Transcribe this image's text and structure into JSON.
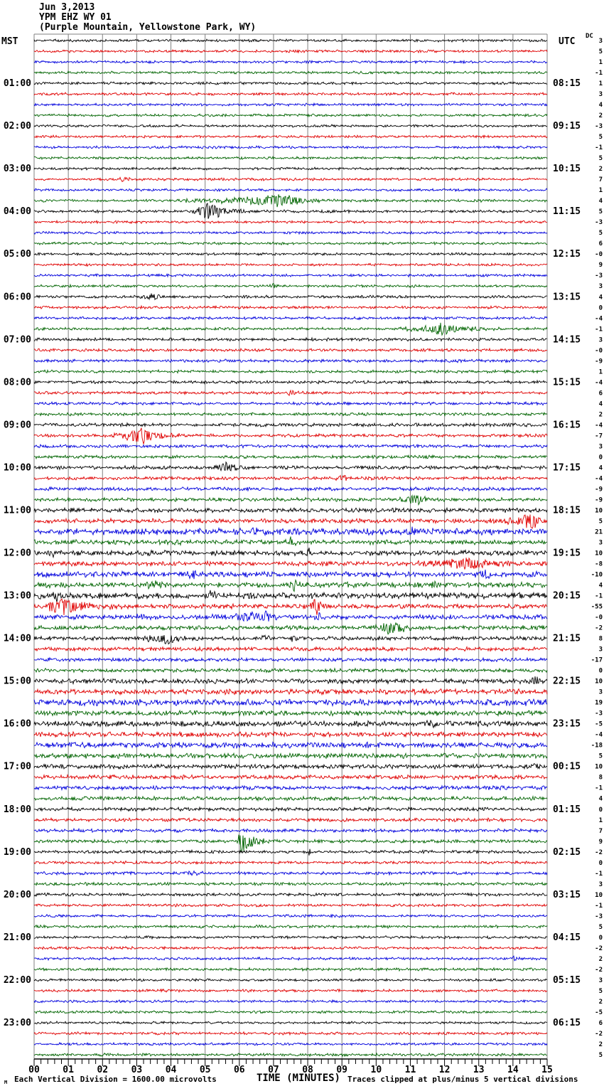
{
  "header": {
    "date": "Jun 3,2013",
    "station": "YPM EHZ WY 01",
    "location": "(Purple Mountain, Yellowstone Park, WY)"
  },
  "axes": {
    "left_timezone": "MST",
    "right_timezone": "UTC",
    "dc_header": "DC",
    "x_title": "TIME (MINUTES)",
    "footer_left": "Each Vertical Division = 1600.00 microvolts",
    "footer_right": "Traces clipped at plus/minus 5 vertical divisions",
    "logo_mark": "M"
  },
  "colors": {
    "trace_cycle": [
      "#000000",
      "#e00000",
      "#0000dd",
      "#006400"
    ],
    "grid": "#808080",
    "text": "#000000"
  },
  "chart_data": {
    "type": "line",
    "subtype": "seismogram-helicorder",
    "title": "YPM EHZ WY 01",
    "subtitle": "(Purple Mountain, Yellowstone Park, WY)",
    "date": "Jun 3,2013",
    "x_range_minutes": [
      0,
      15
    ],
    "x_tick_labels": [
      "00",
      "01",
      "02",
      "03",
      "04",
      "05",
      "06",
      "07",
      "08",
      "09",
      "10",
      "11",
      "12",
      "13",
      "14",
      "15"
    ],
    "trace_count": 96,
    "trace_duration_minutes": 15,
    "traces_per_hour": 4,
    "mst_start": "00:00",
    "utc_offset_hours": 7,
    "mst_hour_labels": [
      "01:00",
      "02:00",
      "03:00",
      "04:00",
      "05:00",
      "06:00",
      "07:00",
      "08:00",
      "09:00",
      "10:00",
      "11:00",
      "12:00",
      "13:00",
      "14:00",
      "15:00",
      "16:00",
      "17:00",
      "18:00",
      "19:00",
      "20:00",
      "21:00",
      "22:00",
      "23:00"
    ],
    "utc_hour_labels": [
      "08:15",
      "09:15",
      "10:15",
      "11:15",
      "12:15",
      "13:15",
      "14:15",
      "15:15",
      "16:15",
      "17:15",
      "18:15",
      "19:15",
      "20:15",
      "21:15",
      "22:15",
      "23:15",
      "00:15",
      "01:15",
      "02:15",
      "03:15",
      "04:15",
      "05:15",
      "06:15"
    ],
    "hour_label_rows": [
      4,
      8,
      12,
      16,
      20,
      24,
      28,
      32,
      36,
      40,
      44,
      48,
      52,
      56,
      60,
      64,
      68,
      72,
      76,
      80,
      84,
      88,
      92
    ],
    "dc_offsets": [
      "3",
      "5",
      "1",
      "-1",
      "1",
      "3",
      "4",
      "2",
      "-3",
      "5",
      "-1",
      "5",
      "2",
      "7",
      "1",
      "4",
      "5",
      "-3",
      "5",
      "6",
      "-0",
      "9",
      "-3",
      "3",
      "4",
      "0",
      "-4",
      "-1",
      "3",
      "-0",
      "-9",
      "1",
      "-4",
      "6",
      "4",
      "2",
      "-4",
      "-7",
      "3",
      "0",
      "4",
      "-4",
      "-9",
      "-9",
      "10",
      "5",
      "21",
      "3",
      "10",
      "-8",
      "-10",
      "4",
      "-1",
      "-55",
      "-0",
      "-2",
      "8",
      "3",
      "-17",
      "0",
      "10",
      "3",
      "19",
      "-3",
      "-5",
      "-4",
      "-18",
      "5",
      "10",
      "8",
      "-1",
      "4",
      "0",
      "1",
      "7",
      "9",
      "-2",
      "0",
      "-1",
      "3",
      "10",
      "-1",
      "-3",
      "5",
      "0",
      "-2",
      "2",
      "-2",
      "3",
      "5",
      "2",
      "-5",
      "6",
      "-2",
      "2",
      "5"
    ],
    "noise_level": [
      1.2,
      1.2,
      1.2,
      1.2,
      1.2,
      1.2,
      1.2,
      1.2,
      1.2,
      1.2,
      1.2,
      1.2,
      1.2,
      1.2,
      1.2,
      1.3,
      1.3,
      1.2,
      1.2,
      1.2,
      1.2,
      1.2,
      1.2,
      1.2,
      1.3,
      1.3,
      1.3,
      1.3,
      1.4,
      1.4,
      1.4,
      1.4,
      1.4,
      1.4,
      1.4,
      1.4,
      1.6,
      1.5,
      1.5,
      1.5,
      1.7,
      1.6,
      1.7,
      1.7,
      2.1,
      2.2,
      3.0,
      2.3,
      2.5,
      2.2,
      2.6,
      2.5,
      2.9,
      2.2,
      2.3,
      2.1,
      1.9,
      1.9,
      1.7,
      1.7,
      2.3,
      2.5,
      3.0,
      2.4,
      2.6,
      2.3,
      2.7,
      2.3,
      2.1,
      2.1,
      1.9,
      1.9,
      1.7,
      1.6,
      1.6,
      1.6,
      1.5,
      1.4,
      1.5,
      1.4,
      1.4,
      1.3,
      1.3,
      1.3,
      1.3,
      1.3,
      1.3,
      1.3,
      1.2,
      1.3,
      1.2,
      1.2,
      1.2,
      1.3,
      1.2,
      1.3
    ],
    "events": [
      [
        13,
        2.4,
        2.6,
        3.1,
        3
      ],
      [
        15,
        4.0,
        7.3,
        9.0,
        9
      ],
      [
        16,
        4.5,
        5.1,
        6.6,
        13
      ],
      [
        23,
        6.8,
        7.0,
        7.3,
        4
      ],
      [
        24,
        3.0,
        3.4,
        4.2,
        6
      ],
      [
        27,
        10.3,
        11.9,
        13.8,
        8
      ],
      [
        33,
        7.3,
        7.5,
        7.8,
        4
      ],
      [
        37,
        2.0,
        3.2,
        4.4,
        11
      ],
      [
        40,
        5.0,
        5.6,
        6.6,
        8
      ],
      [
        41,
        8.7,
        9.0,
        9.4,
        5
      ],
      [
        43,
        10.4,
        11.2,
        12.0,
        8
      ],
      [
        45,
        13.4,
        14.6,
        15.0,
        12
      ],
      [
        46,
        6.0,
        6.5,
        7.2,
        5
      ],
      [
        46,
        10.5,
        11.0,
        12.0,
        5
      ],
      [
        47,
        7.3,
        7.5,
        8.0,
        5
      ],
      [
        48,
        0.2,
        0.5,
        1.3,
        5
      ],
      [
        48,
        7.8,
        8.0,
        8.4,
        5
      ],
      [
        49,
        10.8,
        12.7,
        14.5,
        9
      ],
      [
        50,
        4.3,
        4.6,
        5.2,
        6
      ],
      [
        50,
        13.0,
        13.2,
        13.6,
        8
      ],
      [
        51,
        3.0,
        3.4,
        4.2,
        6
      ],
      [
        51,
        7.3,
        7.6,
        8.3,
        7
      ],
      [
        51,
        9.0,
        9.2,
        9.6,
        5
      ],
      [
        51,
        11.5,
        11.7,
        12.1,
        5
      ],
      [
        52,
        0.3,
        0.6,
        1.5,
        8
      ],
      [
        52,
        4.9,
        5.2,
        5.7,
        6
      ],
      [
        53,
        0.0,
        0.9,
        2.6,
        13
      ],
      [
        53,
        8.0,
        8.25,
        8.6,
        14
      ],
      [
        54,
        2.9,
        3.2,
        3.7,
        6
      ],
      [
        54,
        4.8,
        6.8,
        7.4,
        8
      ],
      [
        54,
        8.1,
        8.3,
        8.6,
        6
      ],
      [
        55,
        9.8,
        10.4,
        11.6,
        9
      ],
      [
        56,
        2.8,
        3.9,
        4.6,
        9
      ],
      [
        56,
        6.6,
        6.75,
        7.0,
        8
      ],
      [
        56,
        7.4,
        7.55,
        7.8,
        7
      ],
      [
        60,
        14.3,
        14.7,
        15.0,
        5
      ],
      [
        62,
        14.2,
        14.4,
        14.8,
        6
      ],
      [
        64,
        11.3,
        11.6,
        12.0,
        5
      ],
      [
        68,
        14.3,
        14.7,
        15.0,
        5
      ],
      [
        75,
        5.9,
        6.05,
        6.9,
        20
      ],
      [
        76,
        7.95,
        8.05,
        8.2,
        5
      ],
      [
        78,
        4.2,
        4.6,
        5.2,
        3
      ],
      [
        83,
        6.3,
        6.5,
        6.9,
        4
      ],
      [
        86,
        13.9,
        14.0,
        14.2,
        6
      ]
    ],
    "clip_divisions": 5,
    "microvolts_per_division": "1600.00",
    "legend_position": "none",
    "grid": "vertical-per-minute"
  }
}
